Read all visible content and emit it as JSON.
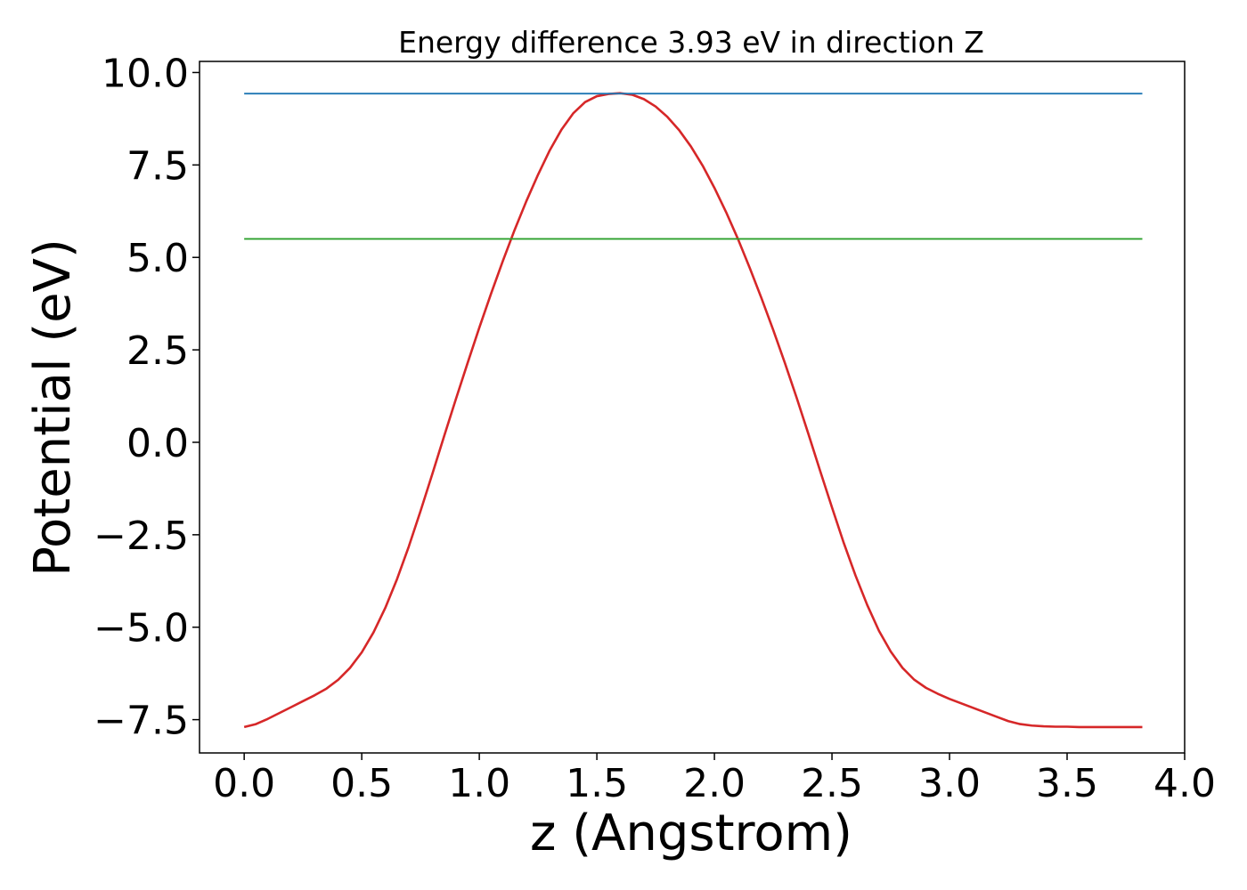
{
  "chart_data": {
    "type": "line",
    "title": "Energy difference 3.93 eV in direction Z",
    "xlabel": "z (Angstrom)",
    "ylabel": "Potential (eV)",
    "xlim": [
      -0.19,
      4.0
    ],
    "ylim": [
      -8.4,
      10.3
    ],
    "xticks": [
      0.0,
      0.5,
      1.0,
      1.5,
      2.0,
      2.5,
      3.0,
      3.5,
      4.0
    ],
    "xtick_labels": [
      "0.0",
      "0.5",
      "1.0",
      "1.5",
      "2.0",
      "2.5",
      "3.0",
      "3.5",
      "4.0"
    ],
    "yticks": [
      -7.5,
      -5.0,
      -2.5,
      0.0,
      2.5,
      5.0,
      7.5,
      10.0
    ],
    "ytick_labels": [
      "−7.5",
      "−5.0",
      "−2.5",
      "0.0",
      "2.5",
      "5.0",
      "7.5",
      "10.0"
    ],
    "grid": false,
    "series": [
      {
        "color": "#d62728",
        "x": [
          0.0,
          0.05,
          0.1,
          0.15,
          0.2,
          0.25,
          0.3,
          0.35,
          0.4,
          0.45,
          0.5,
          0.55,
          0.6,
          0.65,
          0.7,
          0.75,
          0.8,
          0.85,
          0.9,
          0.95,
          1.0,
          1.05,
          1.1,
          1.15,
          1.2,
          1.25,
          1.3,
          1.35,
          1.4,
          1.45,
          1.5,
          1.55,
          1.6,
          1.65,
          1.7,
          1.75,
          1.8,
          1.85,
          1.9,
          1.95,
          2.0,
          2.05,
          2.1,
          2.15,
          2.2,
          2.25,
          2.3,
          2.35,
          2.4,
          2.45,
          2.5,
          2.55,
          2.6,
          2.65,
          2.7,
          2.75,
          2.8,
          2.85,
          2.9,
          2.95,
          3.0,
          3.05,
          3.1,
          3.15,
          3.2,
          3.25,
          3.3,
          3.35,
          3.4,
          3.45,
          3.5,
          3.55,
          3.6,
          3.65,
          3.7,
          3.75,
          3.8,
          3.82
        ],
        "y": [
          -7.7,
          -7.62,
          -7.48,
          -7.32,
          -7.16,
          -7.0,
          -6.84,
          -6.66,
          -6.42,
          -6.1,
          -5.68,
          -5.14,
          -4.48,
          -3.7,
          -2.82,
          -1.86,
          -0.86,
          0.16,
          1.16,
          2.14,
          3.1,
          4.02,
          4.9,
          5.74,
          6.52,
          7.24,
          7.9,
          8.46,
          8.9,
          9.2,
          9.36,
          9.42,
          9.44,
          9.4,
          9.28,
          9.08,
          8.8,
          8.44,
          8.0,
          7.48,
          6.88,
          6.22,
          5.5,
          4.72,
          3.9,
          3.04,
          2.14,
          1.2,
          0.22,
          -0.78,
          -1.76,
          -2.72,
          -3.6,
          -4.4,
          -5.1,
          -5.66,
          -6.1,
          -6.42,
          -6.64,
          -6.8,
          -6.94,
          -7.06,
          -7.18,
          -7.3,
          -7.42,
          -7.54,
          -7.62,
          -7.66,
          -7.68,
          -7.69,
          -7.69,
          -7.7,
          -7.7,
          -7.7,
          -7.7,
          -7.7,
          -7.7,
          -7.7
        ]
      },
      {
        "color": "#1f77b4",
        "x": [
          0.0,
          3.82
        ],
        "y": [
          9.43,
          9.43
        ]
      },
      {
        "color": "#2ca02c",
        "x": [
          0.0,
          3.82
        ],
        "y": [
          5.5,
          5.5
        ]
      }
    ]
  }
}
